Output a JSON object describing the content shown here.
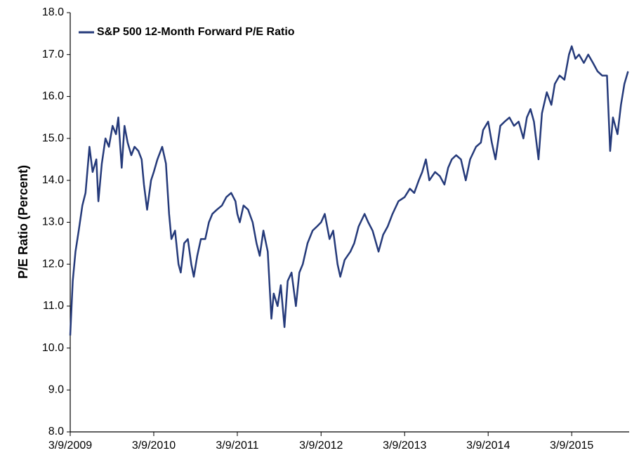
{
  "chart_data": {
    "type": "line",
    "y_label": "P/E Ratio (Percent)",
    "ylim": [
      8,
      18
    ],
    "yticks": [
      {
        "value": 8,
        "label": "8.0"
      },
      {
        "value": 9,
        "label": "9.0"
      },
      {
        "value": 10,
        "label": "10.0"
      },
      {
        "value": 11,
        "label": "11.0"
      },
      {
        "value": 12,
        "label": "12.0"
      },
      {
        "value": 13,
        "label": "13.0"
      },
      {
        "value": 14,
        "label": "14.0"
      },
      {
        "value": 15,
        "label": "15.0"
      },
      {
        "value": 16,
        "label": "16.0"
      },
      {
        "value": 17,
        "label": "17.0"
      },
      {
        "value": 18,
        "label": "18.0"
      }
    ],
    "xlim": [
      "2009-03-09",
      "2015-11-15"
    ],
    "xticks": [
      {
        "value": "2009-03-09",
        "label": "3/9/2009"
      },
      {
        "value": "2010-03-09",
        "label": "3/9/2010"
      },
      {
        "value": "2011-03-09",
        "label": "3/9/2011"
      },
      {
        "value": "2012-03-09",
        "label": "3/9/2012"
      },
      {
        "value": "2013-03-09",
        "label": "3/9/2013"
      },
      {
        "value": "2014-03-09",
        "label": "3/9/2014"
      },
      {
        "value": "2015-03-09",
        "label": "3/9/2015"
      }
    ],
    "legend": "upper left",
    "x": [
      "2009-03-09",
      "2009-03-20",
      "2009-04-01",
      "2009-04-15",
      "2009-05-01",
      "2009-05-15",
      "2009-06-01",
      "2009-06-15",
      "2009-07-01",
      "2009-07-10",
      "2009-07-25",
      "2009-08-10",
      "2009-08-25",
      "2009-09-10",
      "2009-09-25",
      "2009-10-05",
      "2009-10-20",
      "2009-11-01",
      "2009-11-15",
      "2009-12-01",
      "2009-12-15",
      "2010-01-01",
      "2010-01-15",
      "2010-01-25",
      "2010-02-08",
      "2010-02-25",
      "2010-03-09",
      "2010-03-25",
      "2010-04-15",
      "2010-05-01",
      "2010-05-15",
      "2010-05-25",
      "2010-06-10",
      "2010-06-25",
      "2010-07-05",
      "2010-07-20",
      "2010-08-05",
      "2010-08-20",
      "2010-08-31",
      "2010-09-15",
      "2010-10-01",
      "2010-10-20",
      "2010-11-05",
      "2010-11-20",
      "2010-12-10",
      "2011-01-01",
      "2011-01-20",
      "2011-02-10",
      "2011-03-01",
      "2011-03-09",
      "2011-03-20",
      "2011-04-05",
      "2011-04-25",
      "2011-05-15",
      "2011-06-01",
      "2011-06-15",
      "2011-07-01",
      "2011-07-20",
      "2011-08-05",
      "2011-08-15",
      "2011-09-01",
      "2011-09-15",
      "2011-10-01",
      "2011-10-15",
      "2011-11-01",
      "2011-11-20",
      "2011-12-05",
      "2011-12-20",
      "2012-01-10",
      "2012-02-01",
      "2012-02-20",
      "2012-03-09",
      "2012-03-25",
      "2012-04-15",
      "2012-05-01",
      "2012-05-20",
      "2012-06-01",
      "2012-06-20",
      "2012-07-15",
      "2012-08-01",
      "2012-08-20",
      "2012-09-15",
      "2012-10-01",
      "2012-10-20",
      "2012-11-15",
      "2012-12-05",
      "2012-12-25",
      "2013-01-15",
      "2013-02-10",
      "2013-03-09",
      "2013-04-01",
      "2013-04-20",
      "2013-05-10",
      "2013-05-25",
      "2013-06-10",
      "2013-06-25",
      "2013-07-20",
      "2013-08-10",
      "2013-08-30",
      "2013-09-15",
      "2013-10-01",
      "2013-10-20",
      "2013-11-10",
      "2013-12-01",
      "2013-12-20",
      "2014-01-15",
      "2014-02-05",
      "2014-02-15",
      "2014-03-09",
      "2014-03-25",
      "2014-04-10",
      "2014-05-01",
      "2014-05-20",
      "2014-06-10",
      "2014-06-30",
      "2014-07-20",
      "2014-08-10",
      "2014-08-25",
      "2014-09-10",
      "2014-09-25",
      "2014-10-15",
      "2014-10-30",
      "2014-11-20",
      "2014-12-10",
      "2014-12-25",
      "2015-01-15",
      "2015-02-05",
      "2015-02-25",
      "2015-03-09",
      "2015-03-25",
      "2015-04-10",
      "2015-05-01",
      "2015-05-20",
      "2015-06-10",
      "2015-06-30",
      "2015-07-20",
      "2015-08-10",
      "2015-08-24",
      "2015-09-05",
      "2015-09-25",
      "2015-10-10",
      "2015-10-25",
      "2015-11-10"
    ],
    "series": [
      {
        "name": "S&P 500 12-Month Forward P/E Ratio",
        "color": "#253a7a",
        "values": [
          10.3,
          11.6,
          12.3,
          12.8,
          13.4,
          13.7,
          14.8,
          14.2,
          14.5,
          13.5,
          14.4,
          15.0,
          14.8,
          15.3,
          15.1,
          15.5,
          14.3,
          15.3,
          14.9,
          14.6,
          14.8,
          14.7,
          14.5,
          13.9,
          13.3,
          14.0,
          14.2,
          14.5,
          14.8,
          14.4,
          13.2,
          12.6,
          12.8,
          12.0,
          11.8,
          12.5,
          12.6,
          12.0,
          11.7,
          12.2,
          12.6,
          12.6,
          13.0,
          13.2,
          13.3,
          13.4,
          13.6,
          13.7,
          13.5,
          13.2,
          13.0,
          13.4,
          13.3,
          13.0,
          12.5,
          12.2,
          12.8,
          12.3,
          10.7,
          11.3,
          11.0,
          11.5,
          10.5,
          11.6,
          11.8,
          11.0,
          11.8,
          12.0,
          12.5,
          12.8,
          12.9,
          13.0,
          13.2,
          12.6,
          12.8,
          12.0,
          11.7,
          12.1,
          12.3,
          12.5,
          12.9,
          13.2,
          13.0,
          12.8,
          12.3,
          12.7,
          12.9,
          13.2,
          13.5,
          13.6,
          13.8,
          13.7,
          14.0,
          14.2,
          14.5,
          14.0,
          14.2,
          14.1,
          13.9,
          14.3,
          14.5,
          14.6,
          14.5,
          14.0,
          14.5,
          14.8,
          14.9,
          15.2,
          15.4,
          14.9,
          14.5,
          15.3,
          15.4,
          15.5,
          15.3,
          15.4,
          15.0,
          15.5,
          15.7,
          15.4,
          14.5,
          15.6,
          16.1,
          15.8,
          16.3,
          16.5,
          16.4,
          17.0,
          17.2,
          16.9,
          17.0,
          16.8,
          17.0,
          16.8,
          16.6,
          16.5,
          16.5,
          14.7,
          15.5,
          15.1,
          15.8,
          16.3,
          16.6
        ]
      }
    ]
  }
}
